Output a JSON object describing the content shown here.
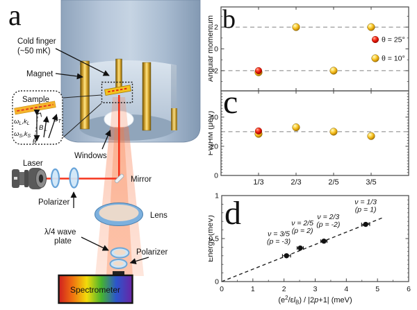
{
  "panel_a": {
    "letter": "a",
    "labels": {
      "cold_finger_1": "Cold finger",
      "cold_finger_2": "(~50 mK)",
      "magnet": "Magnet",
      "windows": "Windows",
      "laser": "Laser",
      "polarizer_top": "Polarizer",
      "mirror": "Mirror",
      "lens": "Lens",
      "waveplate_1": "λ/4 wave",
      "waveplate_2": "plate",
      "polarizer_bottom": "Polarizer",
      "spectrometer": "Spectrometer"
    },
    "inset": {
      "sample": "Sample",
      "omega_L": {
        "w": "ω",
        "ws": "L",
        "k": ",k",
        "ks": "L"
      },
      "omega_S": {
        "w": "ω",
        "ws": "S",
        "k": ",k",
        "ks": "S"
      },
      "B_perp": {
        "b": "B",
        "s": "⊥"
      },
      "B_T": {
        "b": "B",
        "s": "T"
      },
      "theta": "θ"
    }
  },
  "chart_data": [
    {
      "id": "b",
      "type": "scatter",
      "panel_label": "b",
      "ylabel": "Angular momentum",
      "categories": [
        "1/3",
        "2/3",
        "2/5",
        "3/5"
      ],
      "ylim": [
        -3.85,
        3.85
      ],
      "yticks": [
        2,
        0,
        -2
      ],
      "grid_dashed_y": [
        2,
        -2
      ],
      "series": [
        {
          "name": "θ = 10°",
          "color": "gold",
          "points": [
            [
              "1/3",
              -2.15
            ],
            [
              "2/3",
              2
            ],
            [
              "2/5",
              -2
            ],
            [
              "3/5",
              2
            ]
          ]
        },
        {
          "name": "θ = 25°",
          "color": "red",
          "points": [
            [
              "1/3",
              -2
            ]
          ]
        }
      ],
      "legend": [
        {
          "label": "θ = 25°",
          "color": "red"
        },
        {
          "label": "θ = 10°",
          "color": "gold"
        }
      ]
    },
    {
      "id": "c",
      "type": "scatter",
      "panel_label": "c",
      "ylabel": "FWHM (μeV)",
      "categories": [
        "1/3",
        "2/3",
        "2/5",
        "3/5"
      ],
      "ylim": [
        0,
        58
      ],
      "yticks": [
        0,
        20,
        40
      ],
      "grid_dashed_y": [
        30
      ],
      "series": [
        {
          "name": "θ = 10°",
          "color": "gold",
          "points": [
            [
              "1/3",
              28.5
            ],
            [
              "2/3",
              33
            ],
            [
              "2/5",
              30
            ],
            [
              "3/5",
              27
            ]
          ]
        },
        {
          "name": "θ = 25°",
          "color": "red",
          "points": [
            [
              "1/3",
              30.5
            ]
          ]
        }
      ],
      "show_category_labels": true
    },
    {
      "id": "d",
      "type": "scatter",
      "panel_label": "d",
      "ylabel": "Energy (meV)",
      "xlabel_plain": "(e2/εlB) / |2p+1| (meV)",
      "xlabel_parts": [
        {
          "t": "(e"
        },
        {
          "t": "2",
          "f": "sup"
        },
        {
          "t": "/ε"
        },
        {
          "t": "l",
          "f": "i"
        },
        {
          "t": "B",
          "f": "sub"
        },
        {
          "t": ") / |2"
        },
        {
          "t": "p",
          "f": "i"
        },
        {
          "t": "+1| (meV)"
        }
      ],
      "xlim": [
        0,
        6
      ],
      "ylim": [
        0,
        1
      ],
      "xticks": [
        0,
        1,
        2,
        3,
        4,
        5,
        6
      ],
      "yticks": [
        0,
        0.5,
        1
      ],
      "fit_line": {
        "x1": 0,
        "y1": 0,
        "x2": 5.15,
        "y2": 0.74,
        "style": "dashed"
      },
      "points": [
        {
          "x": 2.08,
          "y": 0.3,
          "xerr": 0.13,
          "yerr": 0.025,
          "ann1": "ν = 3/5",
          "ann2": "(p = -3)",
          "ax": 1.83,
          "ay": 0.53
        },
        {
          "x": 2.52,
          "y": 0.39,
          "xerr": 0.1,
          "yerr": 0.025,
          "ann1": "ν = 2/5",
          "ann2": "(p = 2)",
          "ax": 2.59,
          "ay": 0.655
        },
        {
          "x": 3.28,
          "y": 0.47,
          "xerr": 0.1,
          "yerr": 0.025,
          "ann1": "ν = 2/3",
          "ann2": "(p = -2)",
          "ax": 3.42,
          "ay": 0.725
        },
        {
          "x": 4.62,
          "y": 0.665,
          "xerr": 0.13,
          "yerr": 0.025,
          "ann1": "ν = 1/3",
          "ann2": "(p = 1)",
          "ax": 4.62,
          "ay": 0.9
        }
      ]
    }
  ],
  "colors": {
    "gold": "#eeb417",
    "red": "#e51507",
    "beam": "#f5331c",
    "dashed_line": "#808080",
    "cryostat_blue": "#a9bdd3",
    "axis": "#444444"
  }
}
